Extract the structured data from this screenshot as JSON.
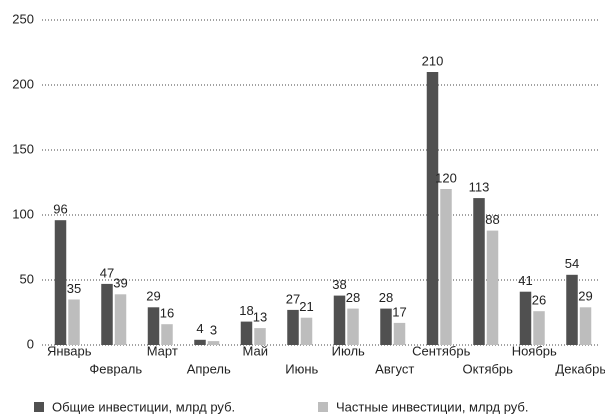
{
  "chart_data": {
    "type": "bar",
    "categories": [
      "Январь",
      "Февраль",
      "Март",
      "Апрель",
      "Май",
      "Июнь",
      "Июль",
      "Август",
      "Сентябрь",
      "Октябрь",
      "Ноябрь",
      "Декабрь"
    ],
    "series": [
      {
        "name": "Общие инвестиции, млрд руб.",
        "color": "#505050",
        "values": [
          96,
          47,
          29,
          4,
          18,
          27,
          38,
          28,
          210,
          113,
          41,
          54
        ]
      },
      {
        "name": "Частные инвестиции, млрд руб.",
        "color": "#bdbdbd",
        "values": [
          35,
          39,
          16,
          3,
          13,
          21,
          28,
          17,
          120,
          88,
          26,
          29
        ]
      }
    ],
    "ylim": [
      0,
      250
    ],
    "yticks": [
      0,
      50,
      100,
      150,
      200,
      250
    ],
    "grid": true,
    "legend": "bottom"
  }
}
